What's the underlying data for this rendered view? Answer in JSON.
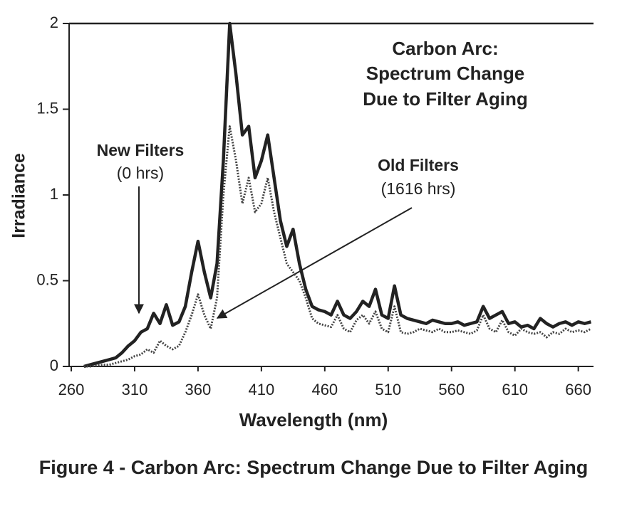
{
  "chart_data": {
    "type": "line",
    "title": "Carbon Arc:",
    "subtitle": [
      "Spectrum Change",
      "Due to Filter Aging"
    ],
    "annotations": [
      "New Filters",
      "(0 hrs)",
      "Old Filters",
      "(1616 hrs)"
    ],
    "x_label": "Wavelength (nm)",
    "y_label": "Irradiance",
    "caption": "Figure 4 - Carbon Arc: Spectrum Change Due to Filter Aging",
    "x": [
      270,
      275,
      280,
      285,
      290,
      295,
      300,
      305,
      310,
      315,
      320,
      325,
      330,
      335,
      340,
      345,
      350,
      355,
      360,
      365,
      370,
      375,
      380,
      385,
      390,
      395,
      400,
      405,
      410,
      415,
      420,
      425,
      430,
      435,
      440,
      445,
      450,
      455,
      460,
      465,
      470,
      475,
      480,
      485,
      490,
      495,
      500,
      505,
      510,
      515,
      520,
      525,
      530,
      535,
      540,
      545,
      550,
      555,
      560,
      565,
      570,
      575,
      580,
      585,
      590,
      595,
      600,
      605,
      610,
      615,
      620,
      625,
      630,
      635,
      640,
      645,
      650,
      655,
      660,
      665,
      670
    ],
    "series": [
      {
        "name": "New Filters",
        "color": "#222222",
        "width": 4.5,
        "dashed": false,
        "values": [
          0,
          0.01,
          0.02,
          0.03,
          0.04,
          0.05,
          0.08,
          0.12,
          0.15,
          0.2,
          0.22,
          0.31,
          0.25,
          0.36,
          0.24,
          0.26,
          0.35,
          0.55,
          0.73,
          0.55,
          0.4,
          0.6,
          1.2,
          2.0,
          1.7,
          1.35,
          1.4,
          1.1,
          1.2,
          1.35,
          1.1,
          0.85,
          0.7,
          0.8,
          0.6,
          0.45,
          0.35,
          0.33,
          0.32,
          0.3,
          0.38,
          0.3,
          0.28,
          0.32,
          0.38,
          0.35,
          0.45,
          0.3,
          0.28,
          0.47,
          0.3,
          0.28,
          0.27,
          0.26,
          0.25,
          0.27,
          0.26,
          0.25,
          0.25,
          0.26,
          0.24,
          0.25,
          0.26,
          0.35,
          0.28,
          0.3,
          0.32,
          0.25,
          0.26,
          0.23,
          0.24,
          0.22,
          0.28,
          0.25,
          0.23,
          0.25,
          0.26,
          0.24,
          0.26,
          0.25,
          0.26
        ]
      },
      {
        "name": "Old Filters",
        "color": "#444444",
        "width": 3,
        "dashed": true,
        "values": [
          0,
          0,
          0.005,
          0.01,
          0.01,
          0.02,
          0.03,
          0.04,
          0.06,
          0.07,
          0.1,
          0.08,
          0.15,
          0.12,
          0.1,
          0.12,
          0.2,
          0.3,
          0.42,
          0.3,
          0.22,
          0.4,
          1.0,
          1.4,
          1.2,
          0.95,
          1.1,
          0.9,
          0.95,
          1.1,
          0.9,
          0.75,
          0.6,
          0.55,
          0.5,
          0.4,
          0.28,
          0.25,
          0.24,
          0.23,
          0.3,
          0.22,
          0.2,
          0.27,
          0.3,
          0.25,
          0.32,
          0.22,
          0.2,
          0.35,
          0.2,
          0.19,
          0.2,
          0.22,
          0.21,
          0.2,
          0.22,
          0.2,
          0.2,
          0.21,
          0.2,
          0.19,
          0.21,
          0.3,
          0.22,
          0.2,
          0.27,
          0.2,
          0.18,
          0.22,
          0.2,
          0.19,
          0.2,
          0.17,
          0.2,
          0.19,
          0.22,
          0.2,
          0.21,
          0.2,
          0.22
        ]
      }
    ],
    "xlim": [
      260,
      672
    ],
    "xticks": [
      260,
      310,
      360,
      410,
      460,
      510,
      560,
      610,
      660
    ],
    "ylim": [
      0,
      2
    ],
    "yticks": [
      0,
      0.5,
      1,
      1.5,
      2
    ]
  }
}
